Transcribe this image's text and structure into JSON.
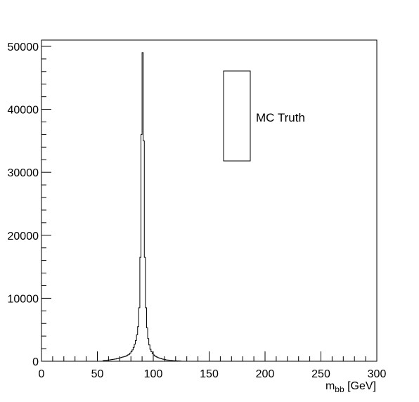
{
  "chart_data": {
    "type": "histogram",
    "title": "",
    "xlabel_main": "m",
    "xlabel_sub": "bb",
    "xlabel_unit": " [GeV]",
    "ylabel": "",
    "xlim": [
      0,
      300
    ],
    "ylim": [
      0,
      51000
    ],
    "xticks": [
      0,
      50,
      100,
      150,
      200,
      250,
      300
    ],
    "xtick_labels": [
      "0",
      "50",
      "100",
      "150",
      "200",
      "250",
      "300"
    ],
    "yticks": [
      0,
      10000,
      20000,
      30000,
      40000,
      50000
    ],
    "ytick_labels": [
      "0",
      "10000",
      "20000",
      "30000",
      "40000",
      "50000"
    ],
    "grid": false,
    "legend": {
      "position": "top-right",
      "entries": [
        {
          "label": "MC Truth",
          "symbol": "box-outline"
        }
      ]
    },
    "line_color": "#000000",
    "bin_width": 1,
    "bins": [
      {
        "x": 55,
        "y": 100
      },
      {
        "x": 56,
        "y": 120
      },
      {
        "x": 57,
        "y": 140
      },
      {
        "x": 58,
        "y": 160
      },
      {
        "x": 59,
        "y": 180
      },
      {
        "x": 60,
        "y": 200
      },
      {
        "x": 61,
        "y": 220
      },
      {
        "x": 62,
        "y": 250
      },
      {
        "x": 63,
        "y": 280
      },
      {
        "x": 64,
        "y": 300
      },
      {
        "x": 65,
        "y": 330
      },
      {
        "x": 66,
        "y": 360
      },
      {
        "x": 67,
        "y": 400
      },
      {
        "x": 68,
        "y": 450
      },
      {
        "x": 69,
        "y": 500
      },
      {
        "x": 70,
        "y": 550
      },
      {
        "x": 71,
        "y": 600
      },
      {
        "x": 72,
        "y": 650
      },
      {
        "x": 73,
        "y": 700
      },
      {
        "x": 74,
        "y": 750
      },
      {
        "x": 75,
        "y": 800
      },
      {
        "x": 76,
        "y": 900
      },
      {
        "x": 77,
        "y": 1000
      },
      {
        "x": 78,
        "y": 1100
      },
      {
        "x": 79,
        "y": 1300
      },
      {
        "x": 80,
        "y": 1500
      },
      {
        "x": 81,
        "y": 1800
      },
      {
        "x": 82,
        "y": 2200
      },
      {
        "x": 83,
        "y": 2700
      },
      {
        "x": 84,
        "y": 3300
      },
      {
        "x": 85,
        "y": 4200
      },
      {
        "x": 86,
        "y": 5500
      },
      {
        "x": 87,
        "y": 8500
      },
      {
        "x": 88,
        "y": 16500
      },
      {
        "x": 89,
        "y": 36000
      },
      {
        "x": 90,
        "y": 49000
      },
      {
        "x": 91,
        "y": 35000
      },
      {
        "x": 92,
        "y": 16500
      },
      {
        "x": 93,
        "y": 8500
      },
      {
        "x": 94,
        "y": 5300
      },
      {
        "x": 95,
        "y": 3600
      },
      {
        "x": 96,
        "y": 2600
      },
      {
        "x": 97,
        "y": 1900
      },
      {
        "x": 98,
        "y": 1500
      },
      {
        "x": 99,
        "y": 1200
      },
      {
        "x": 100,
        "y": 1000
      },
      {
        "x": 101,
        "y": 850
      },
      {
        "x": 102,
        "y": 750
      },
      {
        "x": 103,
        "y": 650
      },
      {
        "x": 104,
        "y": 570
      },
      {
        "x": 105,
        "y": 500
      },
      {
        "x": 106,
        "y": 440
      },
      {
        "x": 107,
        "y": 390
      },
      {
        "x": 108,
        "y": 340
      },
      {
        "x": 109,
        "y": 300
      },
      {
        "x": 110,
        "y": 260
      },
      {
        "x": 111,
        "y": 230
      },
      {
        "x": 112,
        "y": 200
      },
      {
        "x": 113,
        "y": 180
      },
      {
        "x": 114,
        "y": 160
      },
      {
        "x": 115,
        "y": 140
      },
      {
        "x": 116,
        "y": 120
      },
      {
        "x": 117,
        "y": 100
      },
      {
        "x": 118,
        "y": 90
      },
      {
        "x": 119,
        "y": 80
      },
      {
        "x": 120,
        "y": 70
      },
      {
        "x": 121,
        "y": 60
      },
      {
        "x": 122,
        "y": 50
      },
      {
        "x": 123,
        "y": 40
      },
      {
        "x": 124,
        "y": 30
      }
    ]
  }
}
